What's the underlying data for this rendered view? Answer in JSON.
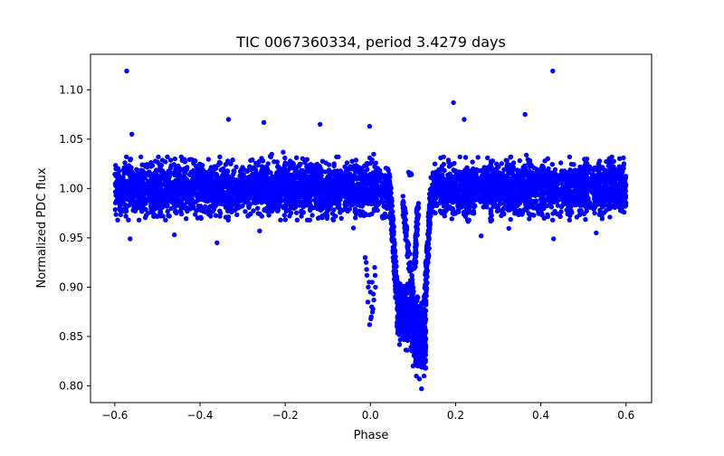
{
  "chart_data": {
    "type": "scatter",
    "title": "TIC 0067360334, period 3.4279 days",
    "xlabel": "Phase",
    "ylabel": "Normalized PDC flux",
    "xlim": [
      -0.657,
      0.66
    ],
    "ylim": [
      0.783,
      1.136
    ],
    "xticks": [
      -0.6,
      -0.4,
      -0.2,
      0.0,
      0.2,
      0.4,
      0.6
    ],
    "xtick_labels": [
      "−0.6",
      "−0.4",
      "−0.2",
      "0.0",
      "0.2",
      "0.4",
      "0.6"
    ],
    "yticks": [
      0.8,
      0.85,
      0.9,
      0.95,
      1.0,
      1.05,
      1.1
    ],
    "ytick_labels": [
      "0.80",
      "0.85",
      "0.90",
      "0.95",
      "1.00",
      "1.05",
      "1.10"
    ],
    "grid": false,
    "marker_color": "#0000ff",
    "baseline": {
      "phase_range": [
        -0.6,
        0.6
      ],
      "flux": 1.0,
      "spread": 0.032,
      "gap_phase_range": [
        0.085,
        0.115
      ]
    },
    "eclipse": {
      "phase_range": [
        0.045,
        0.145
      ],
      "min_flux": 0.797,
      "min_phase": 0.122
    },
    "series": [
      {
        "name": "outliers",
        "points": [
          [
            -0.572,
            1.119
          ],
          [
            0.428,
            1.119
          ],
          [
            0.195,
            1.087
          ],
          [
            0.363,
            1.075
          ],
          [
            0.22,
            1.07
          ],
          [
            -0.333,
            1.07
          ],
          [
            -0.118,
            1.065
          ],
          [
            -0.002,
            1.063
          ],
          [
            -0.56,
            1.055
          ],
          [
            -0.25,
            1.067
          ],
          [
            -0.564,
            0.949
          ],
          [
            -0.36,
            0.945
          ],
          [
            0.43,
            0.949
          ],
          [
            -0.46,
            0.953
          ],
          [
            -0.26,
            0.957
          ],
          [
            -0.04,
            0.96
          ],
          [
            0.26,
            0.952
          ],
          [
            0.53,
            0.955
          ]
        ]
      },
      {
        "name": "pre-eclipse cluster",
        "points": [
          [
            -0.012,
            0.93
          ],
          [
            -0.01,
            0.925
          ],
          [
            -0.008,
            0.912
          ],
          [
            -0.005,
            0.9
          ],
          [
            0.0,
            0.895
          ],
          [
            0.003,
            0.88
          ],
          [
            0.005,
            0.875
          ],
          [
            -0.003,
            0.905
          ],
          [
            0.008,
            0.887
          ],
          [
            0.01,
            0.92
          ],
          [
            0.012,
            0.9
          ],
          [
            -0.006,
            0.885
          ],
          [
            0.002,
            0.87
          ],
          [
            -0.002,
            0.862
          ],
          [
            0.007,
            0.893
          ],
          [
            0.011,
            0.912
          ],
          [
            0.006,
            0.878
          ],
          [
            -0.009,
            0.918
          ],
          [
            0.004,
            0.905
          ],
          [
            0.001,
            0.868
          ]
        ]
      },
      {
        "name": "eclipse minimum",
        "points": [
          [
            0.12,
            0.797
          ],
          [
            0.108,
            0.81
          ],
          [
            0.115,
            0.807
          ],
          [
            0.126,
            0.81
          ],
          [
            0.1,
            0.82
          ],
          [
            0.13,
            0.818
          ],
          [
            0.118,
            0.825
          ],
          [
            0.11,
            0.83
          ]
        ]
      }
    ]
  }
}
